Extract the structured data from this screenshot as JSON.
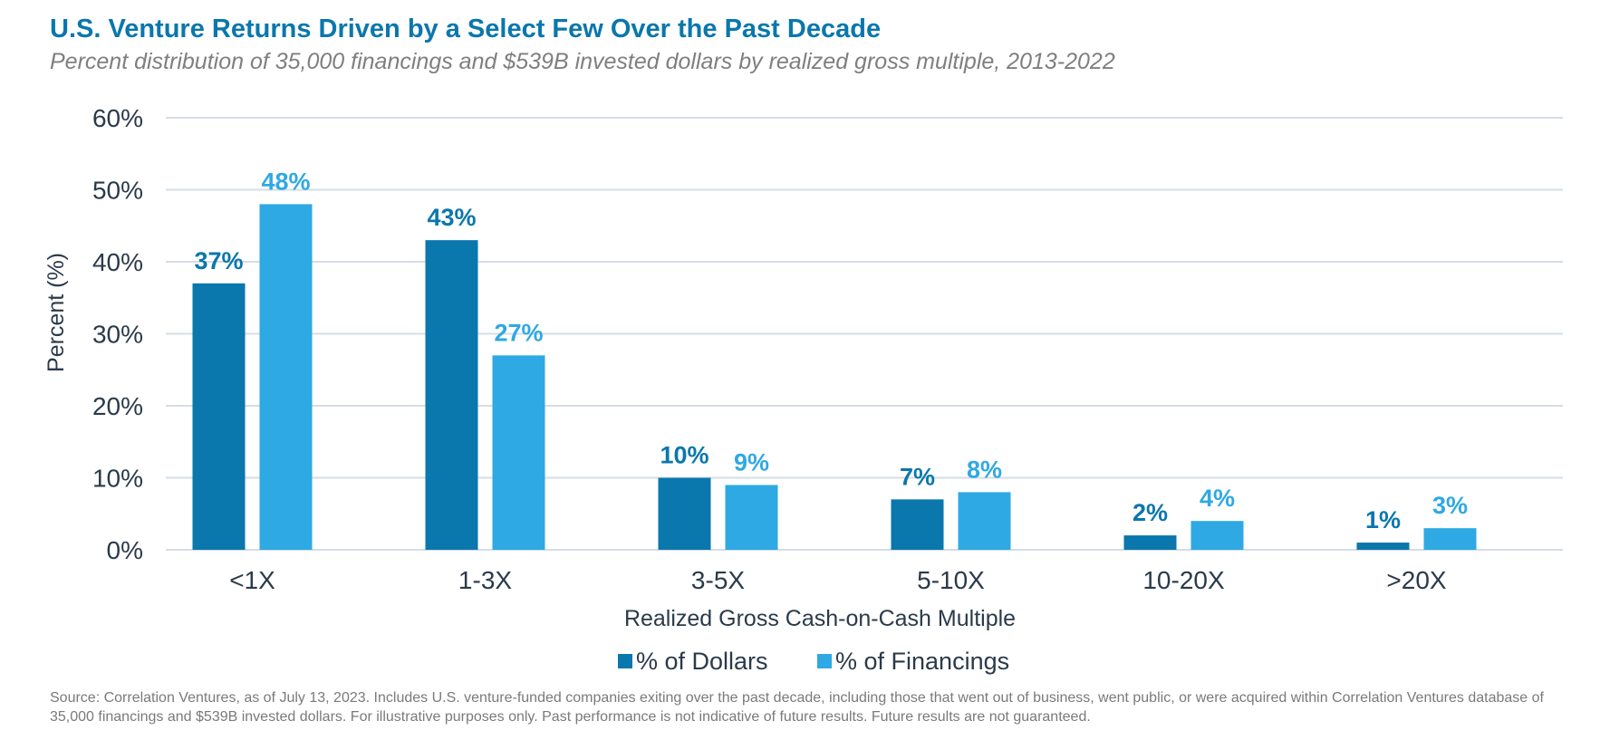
{
  "title": "U.S. Venture Returns Driven by a Select Few Over the Past Decade",
  "subtitle": "Percent distribution of 35,000 financings and $539B invested dollars by realized gross multiple, 2013-2022",
  "footnote": "Source: Correlation Ventures, as of July 13, 2023. Includes U.S. venture-funded companies exiting over the past decade, including those that went out of business, went public, or were acquired within Correlation Ventures database of 35,000 financings and $539B invested dollars. For illustrative purposes only. Past performance is not indicative of future results. Future results are not guaranteed.",
  "colors": {
    "dollars": "#0a77ad",
    "financings": "#2fa9e3",
    "grid": "#d5dde5",
    "text": "#2b3a4a"
  },
  "chart_data": {
    "type": "bar",
    "title": "U.S. Venture Returns Driven by a Select Few Over the Past Decade",
    "xlabel": "Realized Gross Cash-on-Cash Multiple",
    "ylabel": "Percent (%)",
    "ylim": [
      0,
      60
    ],
    "yticks": [
      0,
      10,
      20,
      30,
      40,
      50,
      60
    ],
    "ytick_labels": [
      "0%",
      "10%",
      "20%",
      "30%",
      "40%",
      "50%",
      "60%"
    ],
    "categories": [
      "<1X",
      "1-3X",
      "3-5X",
      "5-10X",
      "10-20X",
      ">20X"
    ],
    "series": [
      {
        "name": "% of Dollars",
        "values": [
          37,
          43,
          10,
          7,
          2,
          1
        ],
        "labels": [
          "37%",
          "43%",
          "10%",
          "7%",
          "2%",
          "1%"
        ]
      },
      {
        "name": "% of Financings",
        "values": [
          48,
          27,
          9,
          8,
          4,
          3
        ],
        "labels": [
          "48%",
          "27%",
          "9%",
          "8%",
          "4%",
          "3%"
        ]
      }
    ],
    "legend": "bottom-center",
    "grid": true
  }
}
